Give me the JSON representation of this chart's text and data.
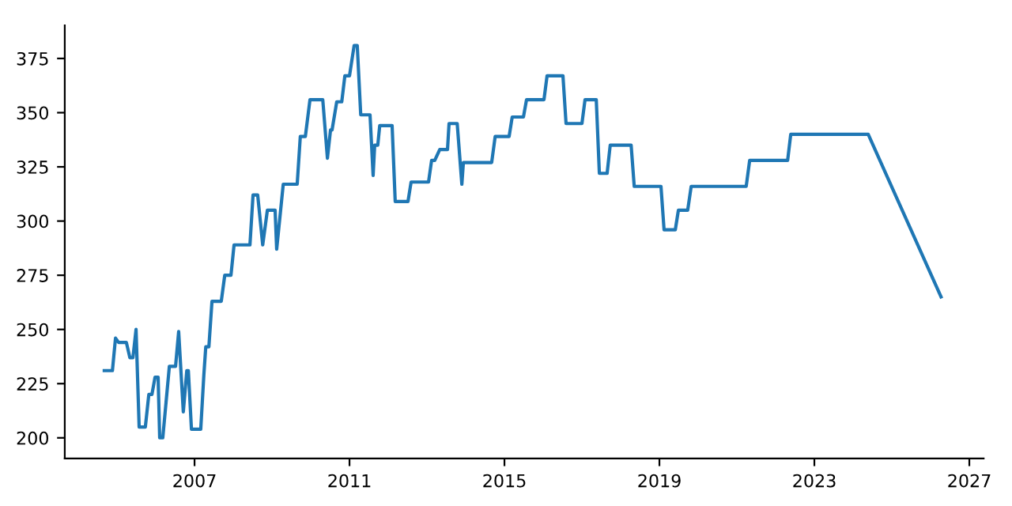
{
  "chart_data": {
    "type": "line",
    "color": "#1f77b4",
    "x": [
      2004.67,
      2004.88,
      2004.96,
      2005.04,
      2005.24,
      2005.33,
      2005.41,
      2005.49,
      2005.57,
      2005.73,
      2005.82,
      2005.9,
      2005.98,
      2006.06,
      2006.1,
      2006.18,
      2006.35,
      2006.51,
      2006.59,
      2006.71,
      2006.8,
      2006.84,
      2006.92,
      2007.16,
      2007.24,
      2007.29,
      2007.37,
      2007.45,
      2007.69,
      2007.78,
      2007.94,
      2008.02,
      2008.43,
      2008.51,
      2008.63,
      2008.76,
      2008.88,
      2009.08,
      2009.12,
      2009.29,
      2009.65,
      2009.73,
      2009.86,
      2009.98,
      2010.31,
      2010.43,
      2010.51,
      2010.55,
      2010.67,
      2010.8,
      2010.88,
      2011.0,
      2011.12,
      2011.2,
      2011.29,
      2011.53,
      2011.61,
      2011.65,
      2011.73,
      2011.78,
      2012.1,
      2012.18,
      2012.51,
      2012.59,
      2013.04,
      2013.12,
      2013.2,
      2013.33,
      2013.53,
      2013.57,
      2013.78,
      2013.9,
      2013.94,
      2014.67,
      2014.76,
      2015.12,
      2015.2,
      2015.49,
      2015.57,
      2016.02,
      2016.1,
      2016.51,
      2016.59,
      2017.0,
      2017.08,
      2017.37,
      2017.45,
      2017.65,
      2017.73,
      2018.27,
      2018.35,
      2019.04,
      2019.12,
      2019.41,
      2019.49,
      2019.73,
      2019.82,
      2021.24,
      2021.33,
      2022.31,
      2022.39,
      2024.39,
      2026.27
    ],
    "values": [
      231,
      231,
      246,
      244,
      244,
      237,
      237,
      250,
      205,
      205,
      220,
      220,
      228,
      228,
      200,
      200,
      233,
      233,
      249,
      212,
      231,
      231,
      204,
      204,
      229,
      242,
      242,
      263,
      263,
      275,
      275,
      289,
      289,
      312,
      312,
      289,
      305,
      305,
      287,
      317,
      317,
      339,
      339,
      356,
      356,
      329,
      342,
      342,
      355,
      355,
      367,
      367,
      381,
      381,
      349,
      349,
      321,
      335,
      335,
      344,
      344,
      309,
      309,
      318,
      318,
      328,
      328,
      333,
      333,
      345,
      345,
      317,
      327,
      327,
      339,
      339,
      348,
      348,
      356,
      356,
      367,
      367,
      345,
      345,
      356,
      356,
      322,
      322,
      335,
      335,
      316,
      316,
      296,
      296,
      305,
      305,
      316,
      316,
      328,
      328,
      340,
      340,
      265
    ],
    "xlim": [
      2003.65,
      2027.37
    ],
    "xticks": [
      2007,
      2011,
      2015,
      2019,
      2023,
      2027
    ],
    "ylim": [
      190.5,
      390.3
    ],
    "yticks": [
      200,
      225,
      250,
      275,
      300,
      325,
      350,
      375
    ],
    "grid": false,
    "marker": "none",
    "line_style": "solid"
  }
}
